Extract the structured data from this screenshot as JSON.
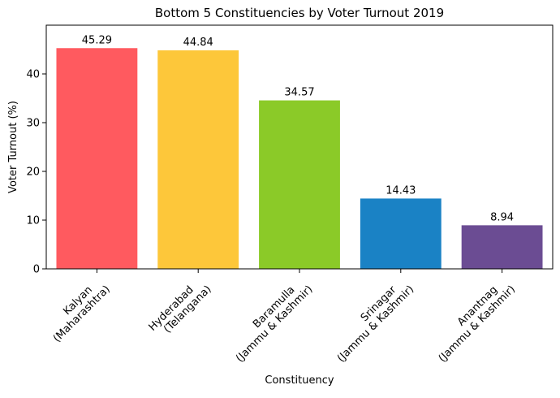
{
  "chart_data": {
    "type": "bar",
    "title": "Bottom 5 Constituencies by Voter Turnout 2019",
    "xlabel": "Constituency",
    "ylabel": "Voter Turnout (%)",
    "ylim": [
      0,
      50
    ],
    "yticks": [
      0,
      10,
      20,
      30,
      40
    ],
    "grid": false,
    "categories": [
      "Kalyan\n(Maharashtra)",
      "Hyderabad\n(Telangana)",
      "Baramulla\n(Jammu & Kashmir)",
      "Srinagar\n(Jammu & Kashmir)",
      "Anantnag\n(Jammu & Kashmir)"
    ],
    "values": [
      45.29,
      44.84,
      34.57,
      14.43,
      8.94
    ],
    "value_labels": [
      "45.29",
      "44.84",
      "34.57",
      "14.43",
      "8.94"
    ],
    "colors": [
      "#ff5a5f",
      "#fdc73a",
      "#8bca28",
      "#1a82c5",
      "#6b4c93"
    ]
  }
}
